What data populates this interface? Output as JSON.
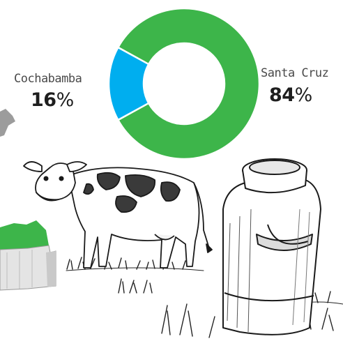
{
  "chart_data": {
    "type": "pie",
    "donut": true,
    "slices": [
      {
        "name": "Santa Cruz",
        "value": 84,
        "label": "84",
        "unit": "%",
        "color": "#3db54a"
      },
      {
        "name": "Cochabamba",
        "value": 16,
        "label": "16",
        "unit": "%",
        "color": "#00aeef"
      }
    ]
  },
  "colors": {
    "green": "#3db54a",
    "blue": "#00aeef",
    "ink": "#1e1e1e"
  },
  "illustration": {
    "icons": [
      "cow-icon",
      "milk-can-icon",
      "grass-icon",
      "map-fragment-icon"
    ]
  }
}
